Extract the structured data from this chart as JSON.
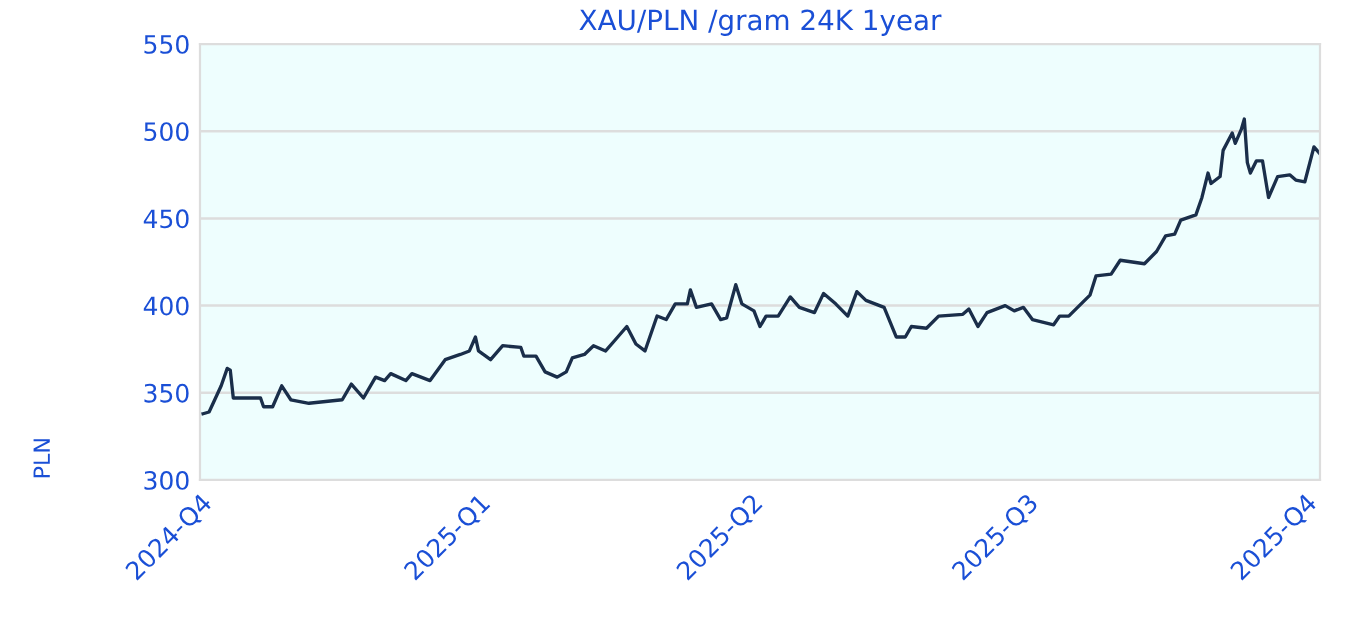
{
  "chart_data": {
    "type": "line",
    "title": "XAU/PLN /gram 24K 1year",
    "ylabel": "PLN",
    "xlim": [
      "2024-10-01",
      "2025-10-06"
    ],
    "ylim": [
      300,
      550
    ],
    "xticks": [
      {
        "value": "2024-10-01",
        "label": "2024-Q4"
      },
      {
        "value": "2025-01-01",
        "label": "2025-Q1"
      },
      {
        "value": "2025-04-01",
        "label": "2025-Q2"
      },
      {
        "value": "2025-07-01",
        "label": "2025-Q3"
      },
      {
        "value": "2025-10-01",
        "label": "2025-Q4"
      }
    ],
    "yticks": [
      300,
      350,
      400,
      450,
      500,
      550
    ],
    "grid": "y",
    "legend": false,
    "series": [
      {
        "color": "#1a2e4a",
        "x": [
          "2024-10-02",
          "2024-10-04",
          "2024-10-08",
          "2024-10-10",
          "2024-10-11",
          "2024-10-12",
          "2024-10-15",
          "2024-10-21",
          "2024-10-22",
          "2024-10-25",
          "2024-10-28",
          "2024-10-31",
          "2024-11-06",
          "2024-11-17",
          "2024-11-20",
          "2024-11-24",
          "2024-11-28",
          "2024-12-01",
          "2024-12-03",
          "2024-12-08",
          "2024-12-10",
          "2024-12-16",
          "2024-12-21",
          "2024-12-26",
          "2024-12-29",
          "2024-12-31",
          "2025-01-01",
          "2025-01-05",
          "2025-01-09",
          "2025-01-15",
          "2025-01-16",
          "2025-01-20",
          "2025-01-23",
          "2025-01-27",
          "2025-01-30",
          "2025-02-01",
          "2025-02-05",
          "2025-02-08",
          "2025-02-12",
          "2025-02-15",
          "2025-02-19",
          "2025-02-22",
          "2025-02-25",
          "2025-03-01",
          "2025-03-04",
          "2025-03-07",
          "2025-03-11",
          "2025-03-12",
          "2025-03-14",
          "2025-03-19",
          "2025-03-22",
          "2025-03-24",
          "2025-03-27",
          "2025-03-29",
          "2025-04-02",
          "2025-04-04",
          "2025-04-06",
          "2025-04-10",
          "2025-04-14",
          "2025-04-17",
          "2025-04-22",
          "2025-04-25",
          "2025-04-29",
          "2025-05-03",
          "2025-05-06",
          "2025-05-09",
          "2025-05-15",
          "2025-05-19",
          "2025-05-22",
          "2025-05-24",
          "2025-05-29",
          "2025-06-02",
          "2025-06-10",
          "2025-06-12",
          "2025-06-15",
          "2025-06-18",
          "2025-06-24",
          "2025-06-27",
          "2025-06-30",
          "2025-07-03",
          "2025-07-10",
          "2025-07-12",
          "2025-07-15",
          "2025-07-22",
          "2025-07-24",
          "2025-07-29",
          "2025-08-01",
          "2025-08-09",
          "2025-08-13",
          "2025-08-16",
          "2025-08-19",
          "2025-08-21",
          "2025-08-26",
          "2025-08-28",
          "2025-08-30",
          "2025-08-31",
          "2025-09-03",
          "2025-09-04",
          "2025-09-07",
          "2025-09-08",
          "2025-09-10",
          "2025-09-11",
          "2025-09-12",
          "2025-09-13",
          "2025-09-15",
          "2025-09-17",
          "2025-09-19",
          "2025-09-22",
          "2025-09-26",
          "2025-09-28",
          "2025-10-01",
          "2025-10-04",
          "2025-10-06"
        ],
        "values": [
          338,
          339,
          354,
          364,
          363,
          347,
          347,
          347,
          342,
          342,
          354,
          346,
          344,
          346,
          355,
          347,
          359,
          357,
          361,
          357,
          361,
          357,
          369,
          372,
          374,
          382,
          374,
          369,
          377,
          376,
          371,
          371,
          362,
          359,
          362,
          370,
          372,
          377,
          374,
          380,
          388,
          378,
          374,
          394,
          392,
          401,
          401,
          409,
          399,
          401,
          392,
          393,
          412,
          401,
          397,
          388,
          394,
          394,
          405,
          399,
          396,
          407,
          401,
          394,
          408,
          403,
          399,
          382,
          382,
          388,
          387,
          394,
          395,
          398,
          388,
          396,
          400,
          397,
          399,
          392,
          389,
          394,
          394,
          406,
          417,
          418,
          426,
          424,
          431,
          440,
          441,
          449,
          452,
          462,
          476,
          470,
          474,
          489,
          499,
          493,
          501,
          507,
          482,
          476,
          483,
          483,
          462,
          474,
          475,
          472,
          471,
          491,
          487
        ]
      }
    ]
  }
}
